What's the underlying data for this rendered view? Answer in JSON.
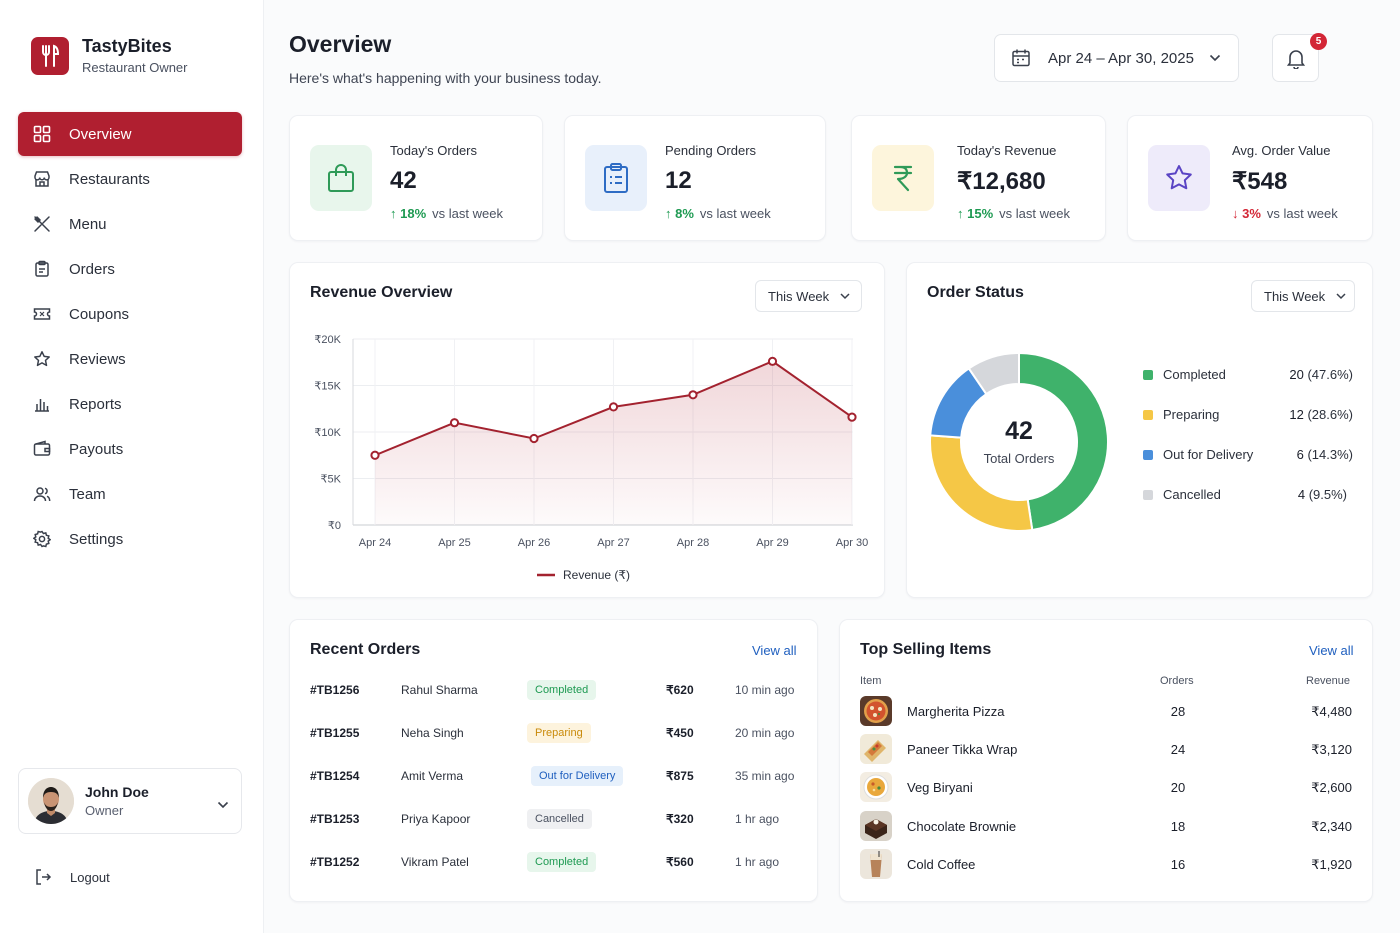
{
  "brand": {
    "name": "TastyBites",
    "subtitle": "Restaurant Owner"
  },
  "nav": [
    {
      "label": "Overview",
      "icon": "grid-icon",
      "active": true
    },
    {
      "label": "Restaurants",
      "icon": "store-icon"
    },
    {
      "label": "Menu",
      "icon": "utensils-icon"
    },
    {
      "label": "Orders",
      "icon": "clipboard-icon"
    },
    {
      "label": "Coupons",
      "icon": "ticket-icon"
    },
    {
      "label": "Reviews",
      "icon": "star-icon"
    },
    {
      "label": "Reports",
      "icon": "bar-chart-icon"
    },
    {
      "label": "Payouts",
      "icon": "wallet-icon"
    },
    {
      "label": "Team",
      "icon": "users-icon"
    },
    {
      "label": "Settings",
      "icon": "gear-icon"
    }
  ],
  "user": {
    "name": "John Doe",
    "role": "Owner"
  },
  "logout_label": "Logout",
  "header": {
    "title": "Overview",
    "subtitle": "Here's what's happening with your business today.",
    "date_range": "Apr 24 – Apr 30, 2025",
    "notification_count": "5"
  },
  "stats": [
    {
      "label": "Today's Orders",
      "value": "42",
      "change": "18%",
      "direction": "up",
      "note": "vs last week",
      "icon": "shopping-bag-icon",
      "color": "#e8f6ec"
    },
    {
      "label": "Pending Orders",
      "value": "12",
      "change": "8%",
      "direction": "up",
      "note": "vs last week",
      "icon": "clipboard-icon",
      "color": "#e8f0fb"
    },
    {
      "label": "Today's Revenue",
      "value": "₹12,680",
      "change": "15%",
      "direction": "up",
      "note": "vs last week",
      "icon": "rupee-icon",
      "color": "#fdf5dc"
    },
    {
      "label": "Avg. Order Value",
      "value": "₹548",
      "change": "3%",
      "direction": "down",
      "note": "vs last week",
      "icon": "star-icon",
      "color": "#eeebfa"
    }
  ],
  "revenue": {
    "title": "Revenue Overview",
    "period": "This Week",
    "legend": "Revenue (₹)"
  },
  "order_status": {
    "title": "Order Status",
    "period": "This Week",
    "total": "42",
    "total_label": "Total Orders",
    "items": [
      {
        "label": "Completed",
        "count": "20",
        "pct": "(47.6%)",
        "color": "#3fb26b",
        "value": 20
      },
      {
        "label": "Preparing",
        "count": "12",
        "pct": "(28.6%)",
        "color": "#f5c746",
        "value": 12
      },
      {
        "label": "Out for Delivery",
        "count": "6",
        "pct": "(14.3%)",
        "color": "#4a8fdb",
        "value": 6
      },
      {
        "label": "Cancelled",
        "count": "4",
        "pct": "(9.5%)",
        "color": "#d5d7db",
        "value": 4
      }
    ]
  },
  "recent_orders": {
    "title": "Recent Orders",
    "view_all": "View all",
    "rows": [
      {
        "id": "#TB1256",
        "customer": "Rahul Sharma",
        "status": "Completed",
        "status_class": "b-completed",
        "amount": "₹620",
        "time": "10 min ago"
      },
      {
        "id": "#TB1255",
        "customer": "Neha Singh",
        "status": "Preparing",
        "status_class": "b-preparing",
        "amount": "₹450",
        "time": "20 min ago"
      },
      {
        "id": "#TB1254",
        "customer": "Amit Verma",
        "status": "Out for Delivery",
        "status_class": "b-delivery",
        "amount": "₹875",
        "time": "35 min ago"
      },
      {
        "id": "#TB1253",
        "customer": "Priya Kapoor",
        "status": "Cancelled",
        "status_class": "b-cancelled",
        "amount": "₹320",
        "time": "1 hr ago"
      },
      {
        "id": "#TB1252",
        "customer": "Vikram Patel",
        "status": "Completed",
        "status_class": "b-completed",
        "amount": "₹560",
        "time": "1 hr ago"
      }
    ]
  },
  "top_selling": {
    "title": "Top Selling Items",
    "view_all": "View all",
    "columns": {
      "item": "Item",
      "orders": "Orders",
      "revenue": "Revenue"
    },
    "rows": [
      {
        "name": "Margherita Pizza",
        "orders": "28",
        "revenue": "₹4,480",
        "thumb": "pizza-icon"
      },
      {
        "name": "Paneer Tikka Wrap",
        "orders": "24",
        "revenue": "₹3,120",
        "thumb": "wrap-icon"
      },
      {
        "name": "Veg Biryani",
        "orders": "20",
        "revenue": "₹2,600",
        "thumb": "biryani-icon"
      },
      {
        "name": "Chocolate Brownie",
        "orders": "18",
        "revenue": "₹2,340",
        "thumb": "brownie-icon"
      },
      {
        "name": "Cold Coffee",
        "orders": "16",
        "revenue": "₹1,920",
        "thumb": "coffee-icon"
      }
    ]
  },
  "chart_data": {
    "type": "line",
    "title": "Revenue Overview",
    "categories": [
      "Apr 24",
      "Apr 25",
      "Apr 26",
      "Apr 27",
      "Apr 28",
      "Apr 29",
      "Apr 30"
    ],
    "series": [
      {
        "name": "Revenue (₹)",
        "values": [
          7500,
          11000,
          9300,
          12700,
          14000,
          17600,
          11600
        ],
        "color": "#a3222f"
      }
    ],
    "y_ticks": [
      "₹0",
      "₹5K",
      "₹10K",
      "₹15K",
      "₹20K"
    ],
    "ylim": [
      0,
      20000
    ],
    "grid": true,
    "legend": "bottom"
  }
}
